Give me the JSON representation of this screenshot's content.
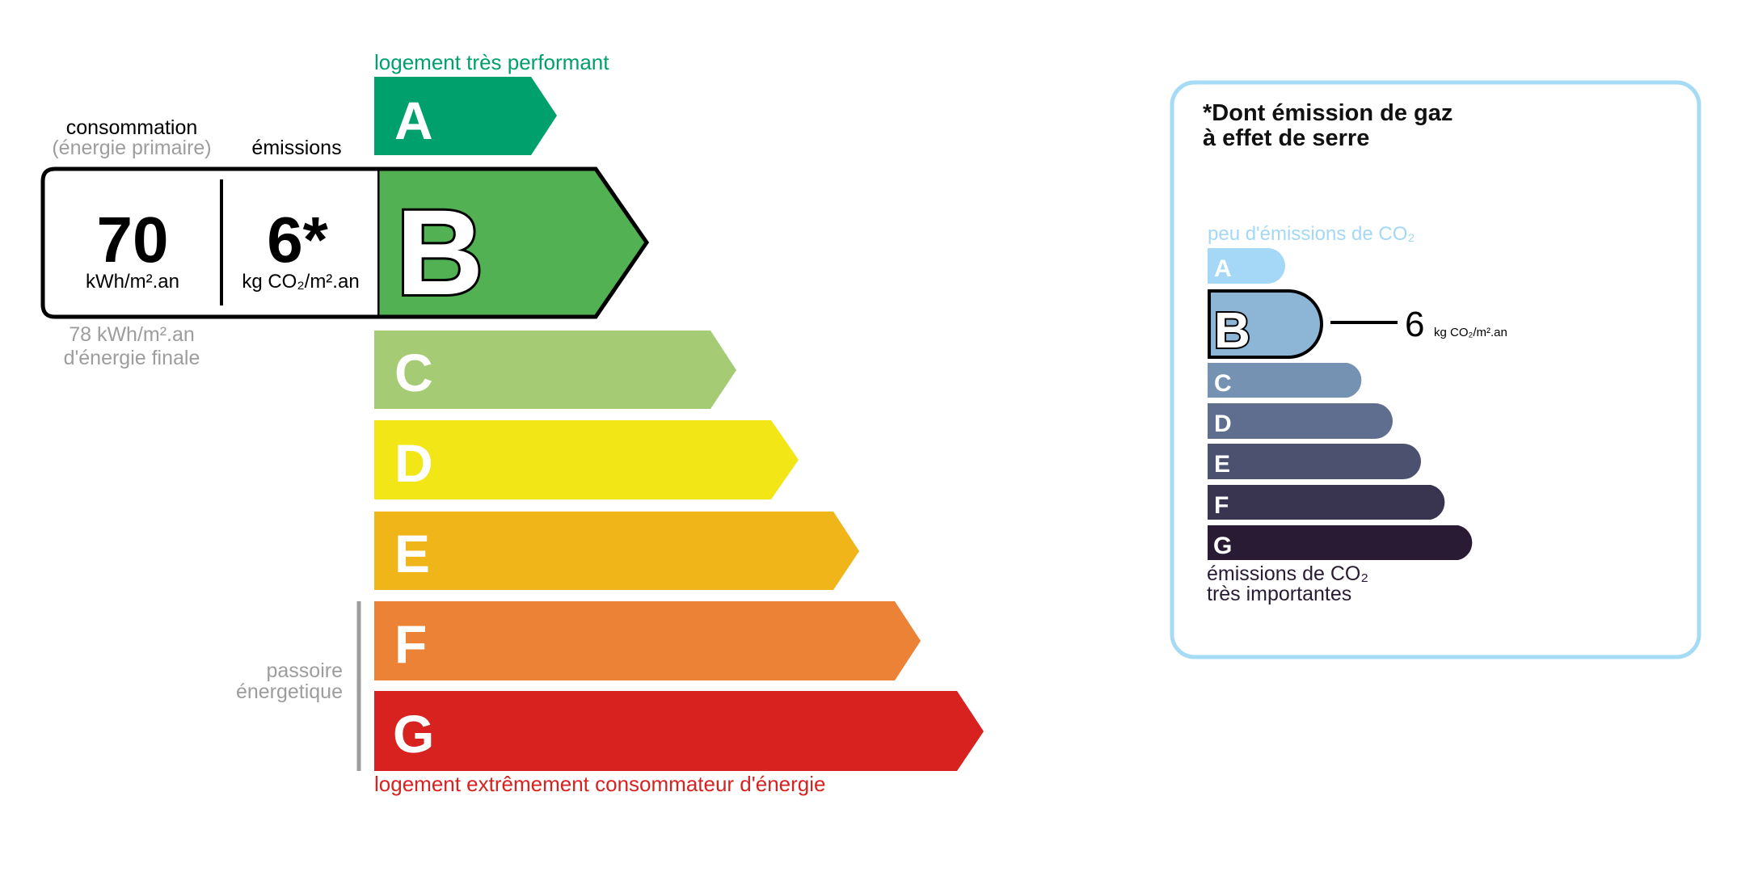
{
  "energy": {
    "top_label": "logement très performant",
    "bottom_label": "logement extrêmement consommateur d'énergie",
    "passoire_line1": "passoire",
    "passoire_line2": "énergetique",
    "classes": [
      {
        "letter": "A",
        "color": "#00a06d"
      },
      {
        "letter": "B",
        "color": "#52b153"
      },
      {
        "letter": "C",
        "color": "#a5cc74"
      },
      {
        "letter": "D",
        "color": "#f2e617"
      },
      {
        "letter": "E",
        "color": "#f0b519"
      },
      {
        "letter": "F",
        "color": "#eb8235"
      },
      {
        "letter": "G",
        "color": "#d7221f"
      }
    ],
    "active_class": "B",
    "consumption_header": "consommation",
    "consumption_subheader": "(énergie primaire)",
    "emissions_header": "émissions",
    "consumption_value": "70",
    "consumption_unit": "kWh/m².an",
    "emissions_value": "6*",
    "emissions_unit": "kg CO₂/m².an",
    "final_energy_line1": "78 kWh/m².an",
    "final_energy_line2": "d'énergie finale",
    "top_label_color": "#00a06d",
    "bottom_label_color": "#d7221f"
  },
  "ghg": {
    "title_line1": "*Dont émission de gaz",
    "title_line2": "à effet de serre",
    "top_label": "peu d'émissions de CO₂",
    "bottom_line1": "émissions de CO₂",
    "bottom_line2": "très importantes",
    "classes": [
      {
        "letter": "A",
        "color": "#a4d8f6"
      },
      {
        "letter": "B",
        "color": "#8db5d6"
      },
      {
        "letter": "C",
        "color": "#7592b3"
      },
      {
        "letter": "D",
        "color": "#5f6d8f"
      },
      {
        "letter": "E",
        "color": "#4c5170"
      },
      {
        "letter": "F",
        "color": "#393551"
      },
      {
        "letter": "G",
        "color": "#2a1b35"
      }
    ],
    "active_class": "B",
    "value": "6",
    "unit": "kg CO₂/m².an",
    "border_color": "#a6dbf5"
  }
}
